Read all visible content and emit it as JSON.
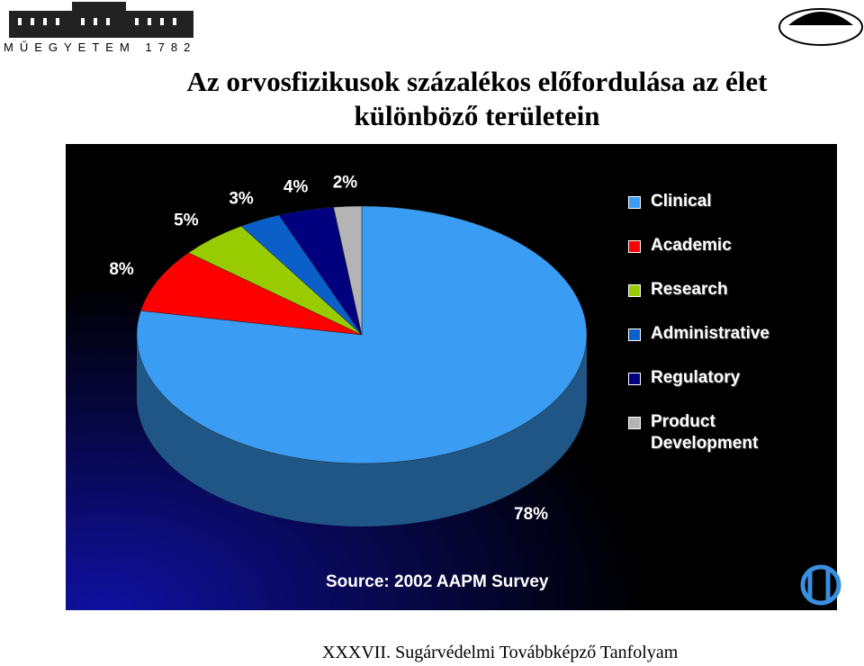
{
  "header": {
    "logo_text": "MŰEGYETEM 1782"
  },
  "chart_data": {
    "type": "pie",
    "title": "Az orvosfizikusok százalékos előfordulása az élet különböző területein",
    "categories": [
      "Clinical",
      "Academic",
      "Research",
      "Administrative",
      "Regulatory",
      "Product Development"
    ],
    "values": [
      78,
      8,
      5,
      3,
      4,
      2
    ],
    "value_labels": [
      "78%",
      "8%",
      "5%",
      "3%",
      "4%",
      "2%"
    ],
    "colors": [
      "#3a9cf2",
      "#ff0000",
      "#99cc00",
      "#0b5fc8",
      "#00007f",
      "#b4b4b4"
    ],
    "source": "Source: 2002 AAPM Survey",
    "legend": "right"
  },
  "footer": {
    "text": "XXXVII. Sugárvédelmi Továbbképző Tanfolyam"
  }
}
